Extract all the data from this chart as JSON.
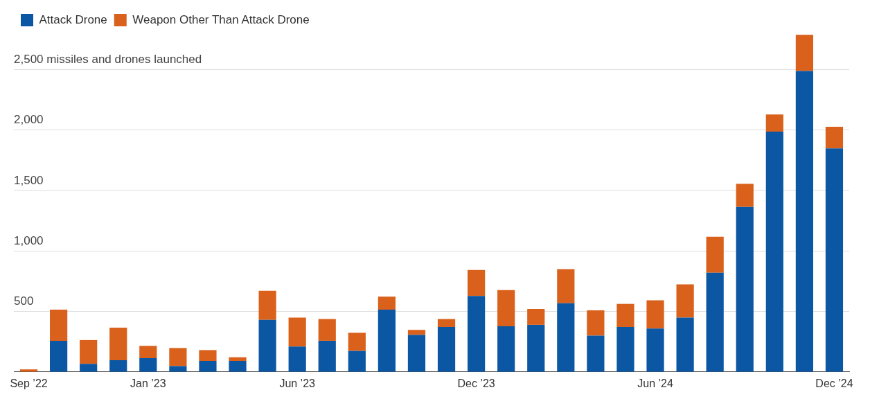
{
  "chart_data": {
    "type": "bar",
    "stacked": true,
    "legend": "top left",
    "grid": "y",
    "categories": [
      "Sep ’22",
      null,
      null,
      null,
      "Jan ’23",
      null,
      null,
      null,
      null,
      "Jun ’23",
      null,
      null,
      null,
      null,
      null,
      "Dec ’23",
      null,
      null,
      null,
      null,
      null,
      "Jun ’24",
      null,
      null,
      null,
      null,
      null,
      "Dec ’24"
    ],
    "series": [
      {
        "name": "Attack Drone",
        "color": "#0b57a4",
        "values": [
          0,
          257,
          66,
          96,
          114,
          48,
          90,
          90,
          430,
          209,
          257,
          173,
          514,
          305,
          371,
          628,
          377,
          389,
          568,
          299,
          371,
          359,
          449,
          819,
          1364,
          1986,
          2488,
          1848
        ]
      },
      {
        "name": "Weapon Other Than Attack Drone",
        "color": "#d9611c",
        "values": [
          20,
          258,
          197,
          269,
          101,
          149,
          90,
          30,
          240,
          240,
          180,
          150,
          108,
          42,
          66,
          215,
          299,
          131,
          281,
          209,
          191,
          233,
          275,
          299,
          191,
          143,
          299,
          179
        ]
      }
    ],
    "ylim": [
      0,
      2800
    ],
    "yticks": [
      {
        "value": 500,
        "label": "500"
      },
      {
        "value": 1000,
        "label": "1,000"
      },
      {
        "value": 1500,
        "label": "1,500"
      },
      {
        "value": 2000,
        "label": "2,000"
      },
      {
        "value": 2500,
        "label": "2,500 missiles and drones launched"
      }
    ]
  }
}
